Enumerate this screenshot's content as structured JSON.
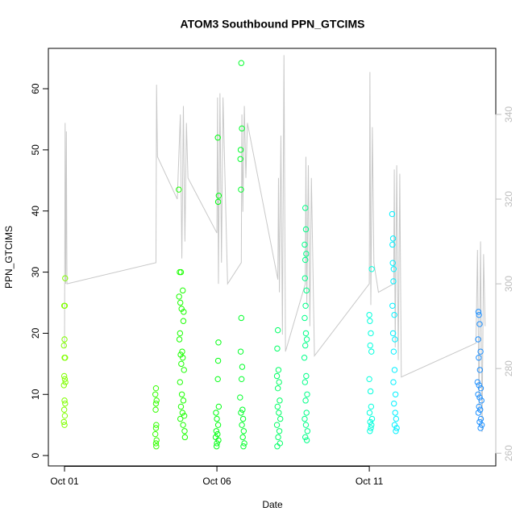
{
  "chart_data": {
    "type": "scatter",
    "title": "ATOM3 Southbound PPN_GTCIMS",
    "xlabel": "Date",
    "ylabel": "PPN_GTCIMS",
    "xlim": [
      -0.53,
      14.15
    ],
    "xticks": [
      {
        "value": 0,
        "label": "Oct 01"
      },
      {
        "value": 5,
        "label": "Oct 06"
      },
      {
        "value": 10,
        "label": "Oct 11"
      }
    ],
    "ylim": [
      -1.7,
      66.6
    ],
    "yticks": [
      0,
      10,
      20,
      30,
      40,
      50,
      60
    ],
    "y2lim": [
      257,
      355.6
    ],
    "y2ticks": [
      260,
      280,
      300,
      320,
      340
    ],
    "y2color": "#bebebe",
    "series": [
      {
        "type": "line",
        "axis": "y2",
        "color": "#c8c8c8",
        "x": [
          0,
          0.02,
          0.04,
          0.06,
          0.08,
          3.0,
          3.02,
          3.05,
          3.7,
          3.8,
          3.85,
          3.9,
          3.95,
          4.0,
          4.05,
          5.0,
          5.02,
          5.05,
          5.1,
          5.15,
          5.2,
          5.35,
          5.8,
          5.82,
          5.85,
          5.9,
          5.95,
          6.0,
          7.0,
          7.02,
          7.05,
          7.1,
          7.15,
          7.2,
          7.25,
          7.9,
          7.92,
          7.95,
          8.0,
          8.05,
          8.1,
          8.2,
          10.0,
          10.02,
          10.05,
          10.1,
          10.15,
          10.3,
          10.8,
          10.82,
          10.85,
          10.9,
          10.95,
          11.0,
          11.05,
          13.5,
          13.55,
          13.6,
          13.65,
          13.7,
          13.75,
          13.8
        ],
        "values": [
          285,
          338,
          300,
          336,
          300,
          305,
          347,
          330,
          320,
          340,
          306,
          342,
          310,
          338,
          325,
          312,
          344,
          300,
          345,
          305,
          344,
          300,
          305,
          340,
          317,
          342,
          325,
          338,
          301,
          325,
          298,
          335,
          288,
          354,
          284,
          300,
          330,
          295,
          328,
          290,
          325,
          283,
          300,
          350,
          295,
          337,
          305,
          298,
          300,
          327,
          285,
          328,
          282,
          326,
          278,
          286,
          308,
          270,
          310,
          265,
          307,
          290
        ]
      },
      {
        "type": "scatter",
        "color": "#80ff00",
        "x": [
          0.02,
          -0.01,
          0.01,
          0.0,
          -0.02,
          0.0,
          0.02,
          -0.01,
          0.01,
          0.03,
          -0.02,
          0.0,
          0.02,
          -0.01,
          0.01,
          -0.02,
          0.0
        ],
        "values": [
          29,
          24.5,
          24.5,
          19,
          18,
          16,
          16,
          13,
          12.5,
          12,
          11.5,
          9,
          8.5,
          7.5,
          6.5,
          5.5,
          5
        ]
      },
      {
        "type": "scatter",
        "color": "#33ff00",
        "x": [
          3.0,
          2.98,
          3.02,
          3.0,
          2.99,
          3.01,
          3.0,
          2.98,
          3.02,
          3.0,
          3.01
        ],
        "values": [
          11,
          10,
          9,
          8.5,
          7.5,
          5,
          4.5,
          3.5,
          2.5,
          2,
          1.5
        ]
      },
      {
        "type": "scatter",
        "color": "#1aff00",
        "x": [
          3.75,
          3.78,
          3.82,
          3.76,
          3.8,
          3.84,
          3.9,
          3.79,
          3.77,
          3.86,
          3.81,
          3.88,
          3.83,
          3.92,
          3.79,
          3.85,
          3.9,
          3.82,
          3.87,
          3.93,
          3.8,
          3.89,
          3.94,
          3.95,
          3.88,
          3.91
        ],
        "values": [
          43.5,
          30,
          30,
          26,
          25,
          24,
          22,
          20,
          19,
          17,
          16.5,
          16,
          15,
          14,
          12,
          10,
          9,
          8,
          7,
          6.5,
          6,
          5,
          4,
          3,
          27,
          23.5
        ]
      },
      {
        "type": "scatter",
        "color": "#00ff11",
        "x": [
          5.03,
          5.06,
          5.04,
          5.05,
          5.04,
          5.03,
          5.06,
          4.97,
          5.0,
          5.04,
          4.98,
          5.02,
          4.96,
          5.05,
          5.0,
          4.99
        ],
        "values": [
          52,
          42.5,
          41.5,
          18.5,
          15.5,
          12.5,
          8,
          7,
          6,
          5,
          4,
          3.5,
          3,
          2.5,
          2,
          1.5
        ]
      },
      {
        "type": "scatter",
        "color": "#00ff2a",
        "x": [
          5.8,
          5.82,
          5.78,
          5.77,
          5.79,
          5.8,
          5.78,
          5.83,
          5.81,
          5.76,
          5.84,
          5.79,
          5.86,
          5.82,
          5.88,
          5.85,
          5.9,
          5.87
        ],
        "values": [
          64.2,
          53.5,
          50,
          48.5,
          43.5,
          22.5,
          17,
          14.5,
          12.5,
          9.5,
          7.5,
          7,
          6,
          5,
          4,
          3,
          2,
          1.5
        ]
      },
      {
        "type": "scatter",
        "color": "#00ff66",
        "x": [
          7.0,
          6.98,
          7.02,
          6.97,
          7.04,
          7.0,
          7.06,
          6.99,
          7.03,
          7.08,
          6.97,
          7.05,
          7.01,
          7.07,
          6.98
        ],
        "values": [
          20.5,
          17.5,
          14,
          13,
          12,
          11,
          9,
          8,
          7,
          6,
          5,
          4,
          3,
          2,
          1.5
        ]
      },
      {
        "type": "scatter",
        "color": "#00ff88",
        "x": [
          7.9,
          7.92,
          7.88,
          7.93,
          7.9,
          7.89,
          7.94,
          7.91,
          7.88,
          7.92,
          7.95,
          7.9,
          7.87,
          7.93,
          7.89,
          7.96,
          7.91,
          7.94,
          7.88,
          7.92,
          7.97,
          7.9,
          7.95
        ],
        "values": [
          40.5,
          37,
          34.5,
          33,
          32,
          29,
          27,
          24.5,
          22.5,
          20,
          19,
          18,
          16,
          13,
          12,
          10,
          9,
          7,
          6,
          5,
          4,
          3,
          2.5
        ]
      },
      {
        "type": "scatter",
        "color": "#00ffdd",
        "x": [
          10.08,
          10.0,
          10.02,
          10.05,
          10.03,
          10.07,
          10.0,
          10.04,
          10.06,
          10.01,
          10.09,
          10.03,
          10.07,
          10.05,
          10.02
        ],
        "values": [
          30.5,
          23,
          22,
          20,
          18,
          17,
          12.5,
          10.5,
          8,
          7,
          6,
          5.5,
          5,
          4.5,
          4
        ]
      },
      {
        "type": "scatter",
        "color": "#00f0ff",
        "x": [
          10.75,
          10.78,
          10.76,
          10.77,
          10.8,
          10.79,
          10.76,
          10.82,
          10.78,
          10.84,
          10.8,
          10.83,
          10.79,
          10.86,
          10.81,
          10.85,
          10.88,
          10.83,
          10.9,
          10.87
        ],
        "values": [
          39.5,
          35.5,
          34.5,
          31.5,
          30.5,
          28.5,
          24.5,
          23,
          20,
          19,
          17,
          14,
          12,
          10,
          8.5,
          7,
          6,
          5,
          4.5,
          4
        ]
      },
      {
        "type": "scatter",
        "color": "#1e90ff",
        "x": [
          13.58,
          13.6,
          13.62,
          13.57,
          13.65,
          13.59,
          13.63,
          13.55,
          13.6,
          13.66,
          13.57,
          13.62,
          13.68,
          13.6,
          13.64,
          13.58,
          13.66,
          13.62,
          13.69,
          13.65
        ],
        "values": [
          23.5,
          23,
          21.5,
          19,
          17,
          16,
          14,
          12,
          11.5,
          11,
          10,
          9.5,
          9,
          8,
          7.5,
          7,
          6,
          5.5,
          5,
          4.5
        ]
      }
    ]
  }
}
